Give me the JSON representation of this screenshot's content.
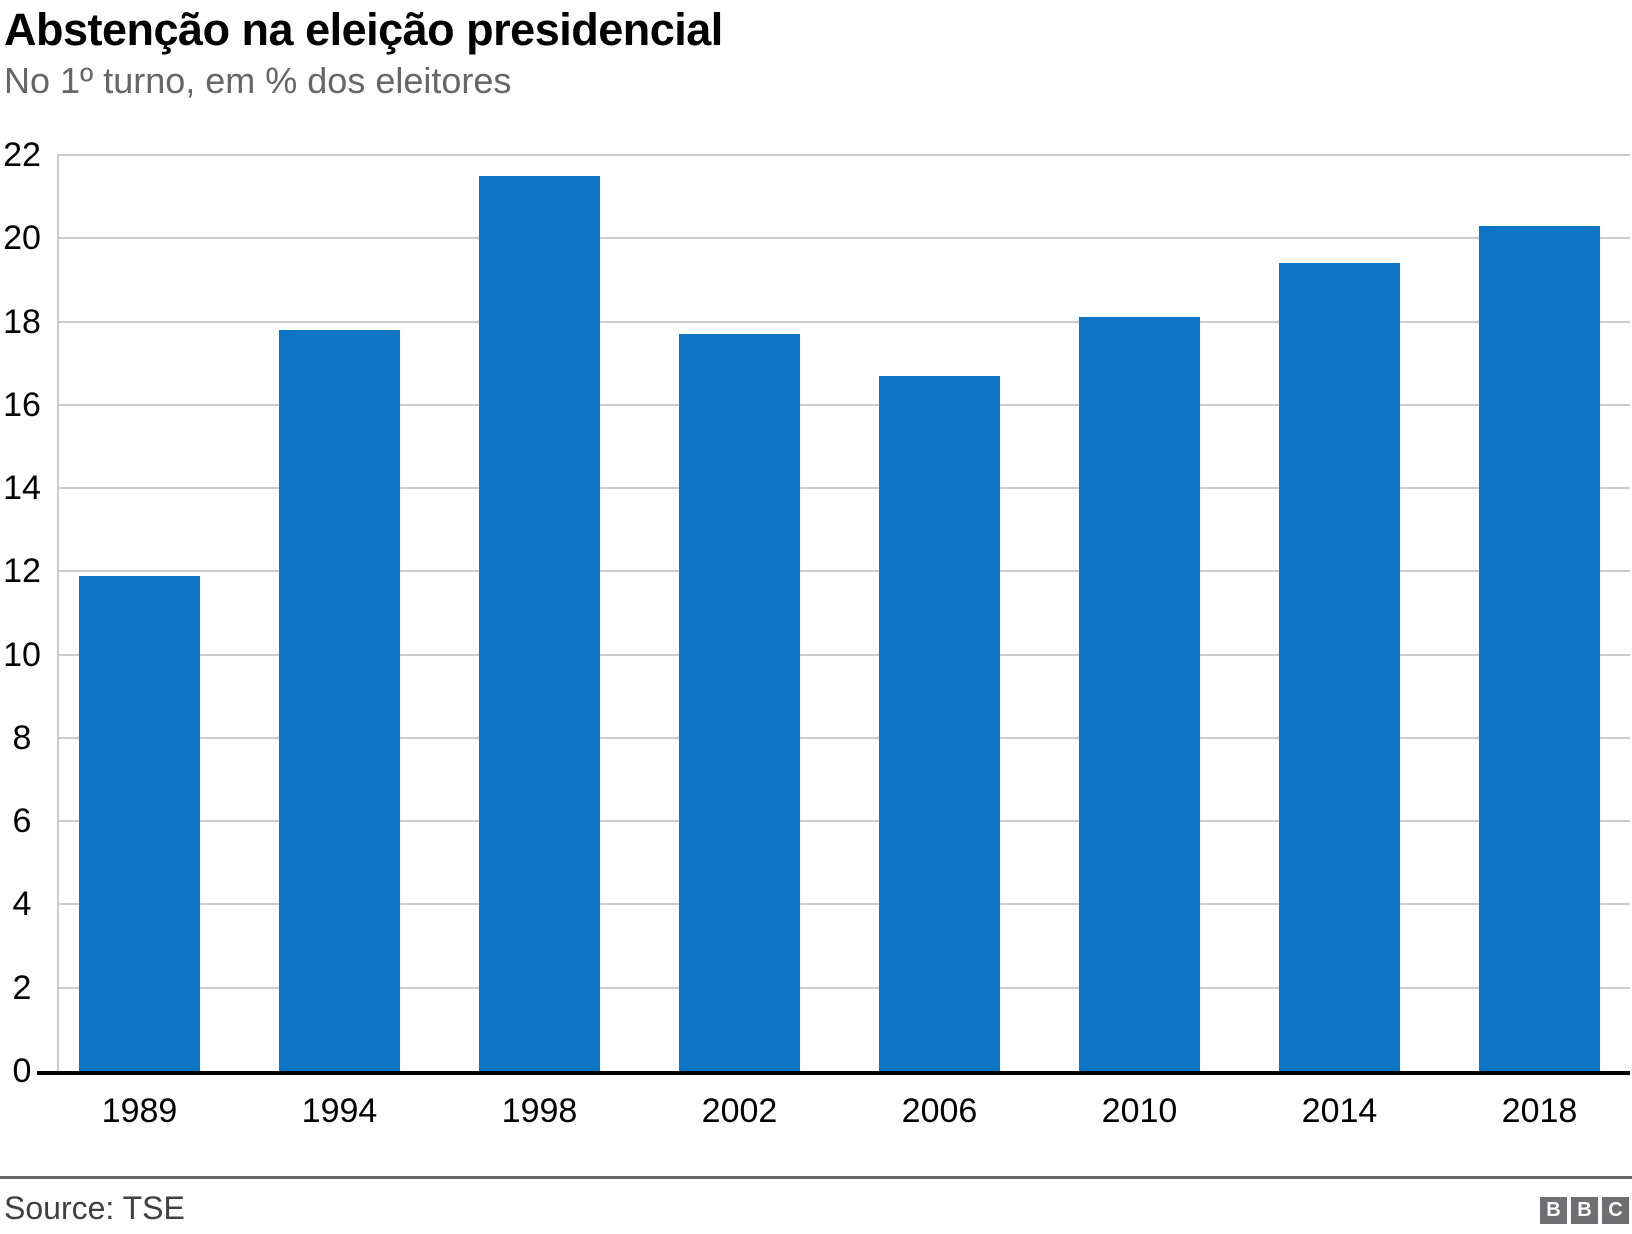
{
  "header": {
    "title": "Abstenção na eleição presidencial",
    "subtitle": "No 1º turno, em % dos eleitores"
  },
  "chart_data": {
    "type": "bar",
    "title": "Abstenção na eleição presidencial",
    "subtitle": "No 1º turno, em % dos eleitores",
    "categories": [
      "1989",
      "1994",
      "1998",
      "2002",
      "2006",
      "2010",
      "2014",
      "2018"
    ],
    "values": [
      11.9,
      17.8,
      21.5,
      17.7,
      16.7,
      18.1,
      19.4,
      20.3
    ],
    "xlabel": "",
    "ylabel": "",
    "ylim": [
      0,
      22
    ],
    "yticks": [
      0,
      2,
      4,
      6,
      8,
      10,
      12,
      14,
      16,
      18,
      20,
      22
    ],
    "grid": true,
    "legend": false,
    "bar_color": "#0c74c5"
  },
  "footer": {
    "source": "Source: TSE",
    "logo_letters": [
      "B",
      "B",
      "C"
    ]
  },
  "colors": {
    "bar": "#0c74c5",
    "grid": "#cccccc",
    "axis": "#000000",
    "title_text": "#000000",
    "subtitle_text": "#666666",
    "footer_text": "#404040",
    "divider": "#666666",
    "logo_bg": "#6e6e73",
    "logo_text": "#ffffff"
  }
}
